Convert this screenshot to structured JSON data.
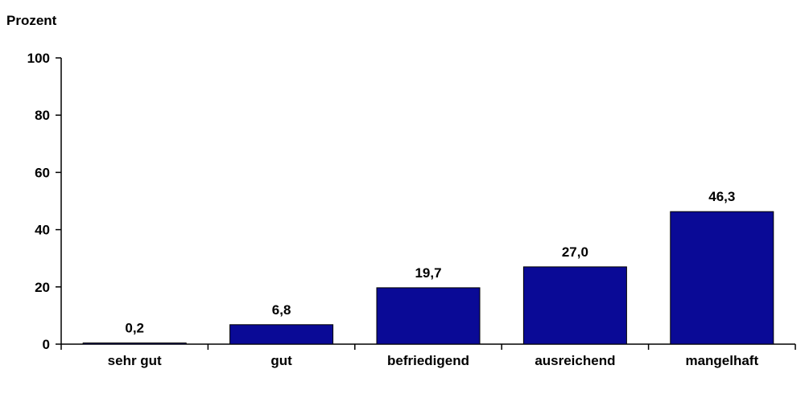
{
  "chart_data": {
    "type": "bar",
    "ylabel": "Prozent",
    "categories": [
      "sehr gut",
      "gut",
      "befriedigend",
      "ausreichend",
      "mangelhaft"
    ],
    "values": [
      0.2,
      6.8,
      19.7,
      27.0,
      46.3
    ],
    "value_labels": [
      "0,2",
      "6,8",
      "19,7",
      "27,0",
      "46,3"
    ],
    "yticks": [
      "0",
      "20",
      "40",
      "60",
      "80",
      "100"
    ],
    "ylim": [
      0,
      100
    ],
    "bar_color": "#0a0a96",
    "grid": false,
    "legend": "none"
  }
}
